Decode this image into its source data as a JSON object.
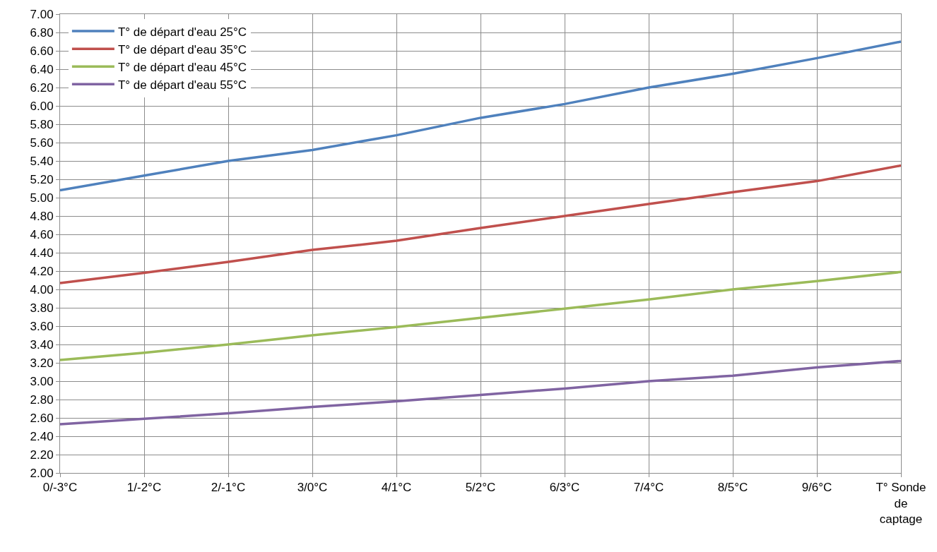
{
  "chart_data": {
    "type": "line",
    "categories": [
      "0/-3°C",
      "1/-2°C",
      "2/-1°C",
      "3/0°C",
      "4/1°C",
      "5/2°C",
      "6/3°C",
      "7/4°C",
      "8/5°C",
      "9/6°C",
      "T° Sonde de captage"
    ],
    "series": [
      {
        "name": "T° de départ d'eau 25°C",
        "color": "#4f81bd",
        "values": [
          5.08,
          5.24,
          5.4,
          5.52,
          5.68,
          5.87,
          6.02,
          6.2,
          6.35,
          6.52,
          6.7
        ]
      },
      {
        "name": "T° de départ d'eau 35°C",
        "color": "#c0504d",
        "values": [
          4.07,
          4.18,
          4.3,
          4.43,
          4.53,
          4.67,
          4.8,
          4.93,
          5.06,
          5.18,
          5.35
        ]
      },
      {
        "name": "T° de départ d'eau 45°C",
        "color": "#9bbb59",
        "values": [
          3.23,
          3.31,
          3.4,
          3.5,
          3.59,
          3.69,
          3.79,
          3.89,
          4.0,
          4.09,
          4.19
        ]
      },
      {
        "name": "T° de départ d'eau 55°C",
        "color": "#8064a2",
        "values": [
          2.53,
          2.59,
          2.65,
          2.72,
          2.78,
          2.85,
          2.92,
          3.0,
          3.06,
          3.15,
          3.22
        ]
      }
    ],
    "ylim": [
      2.0,
      7.0
    ],
    "yticks": [
      {
        "value": 2.0,
        "label": "2.00"
      },
      {
        "value": 2.2,
        "label": "2.20"
      },
      {
        "value": 2.4,
        "label": "2.40"
      },
      {
        "value": 2.6,
        "label": "2.60"
      },
      {
        "value": 2.8,
        "label": "2.80"
      },
      {
        "value": 3.0,
        "label": "3.00"
      },
      {
        "value": 3.2,
        "label": "3.20"
      },
      {
        "value": 3.4,
        "label": "3.40"
      },
      {
        "value": 3.6,
        "label": "3.60"
      },
      {
        "value": 3.8,
        "label": "3.80"
      },
      {
        "value": 4.0,
        "label": "4.00"
      },
      {
        "value": 4.2,
        "label": "4.20"
      },
      {
        "value": 4.4,
        "label": "4.40"
      },
      {
        "value": 4.6,
        "label": "4.60"
      },
      {
        "value": 4.8,
        "label": "4.80"
      },
      {
        "value": 5.0,
        "label": "5.00"
      },
      {
        "value": 5.2,
        "label": "5.20"
      },
      {
        "value": 5.4,
        "label": "5.40"
      },
      {
        "value": 5.6,
        "label": "5.60"
      },
      {
        "value": 5.8,
        "label": "5.80"
      },
      {
        "value": 6.0,
        "label": "6.00"
      },
      {
        "value": 6.2,
        "label": "6.20"
      },
      {
        "value": 6.4,
        "label": "6.40"
      },
      {
        "value": 6.6,
        "label": "6.60"
      },
      {
        "value": 6.8,
        "label": "6.80"
      },
      {
        "value": 7.0,
        "label": "7.00"
      }
    ],
    "grid": true,
    "legend": "top left",
    "marker": "none",
    "line_style": "solid"
  }
}
